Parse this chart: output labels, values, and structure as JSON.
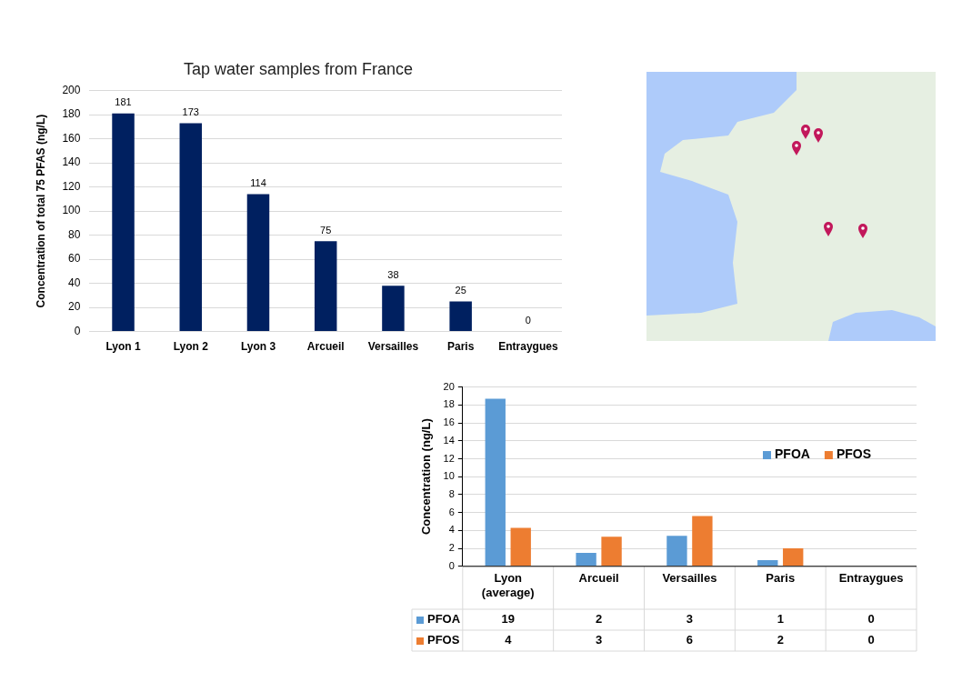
{
  "chart_data": [
    {
      "type": "bar",
      "title": "Tap water samples from France",
      "ylabel": "Concentration of total 75 PFAS (ng/L)",
      "categories": [
        "Lyon 1",
        "Lyon 2",
        "Lyon 3",
        "Arcueil",
        "Versailles",
        "Paris",
        "Entraygues"
      ],
      "values": [
        181,
        173,
        114,
        75,
        38,
        25,
        0
      ],
      "color": "#002060",
      "ylim": [
        0,
        200
      ],
      "yticks": [
        0,
        20,
        40,
        60,
        80,
        100,
        120,
        140,
        160,
        180,
        200
      ],
      "grid": "y",
      "data_labels": true
    },
    {
      "type": "bar",
      "ylabel": "Concentration (ng/L)",
      "categories": [
        "Lyon (average)",
        "Arcueil",
        "Versailles",
        "Paris",
        "Entraygues"
      ],
      "series": [
        {
          "name": "PFOA",
          "color": "#5b9bd5",
          "values": [
            18.7,
            1.5,
            3.4,
            0.7,
            0
          ],
          "value_labels": [
            "19",
            "2",
            "3",
            "1",
            "0"
          ]
        },
        {
          "name": "PFOS",
          "color": "#ed7d31",
          "values": [
            4.3,
            3.3,
            5.6,
            2.0,
            0
          ],
          "value_labels": [
            "4",
            "3",
            "6",
            "2",
            "0"
          ]
        }
      ],
      "ylim": [
        0,
        20
      ],
      "yticks": [
        0,
        2,
        4,
        6,
        8,
        10,
        12,
        14,
        16,
        18,
        20
      ],
      "grid": "y",
      "legend": "right"
    }
  ]
}
